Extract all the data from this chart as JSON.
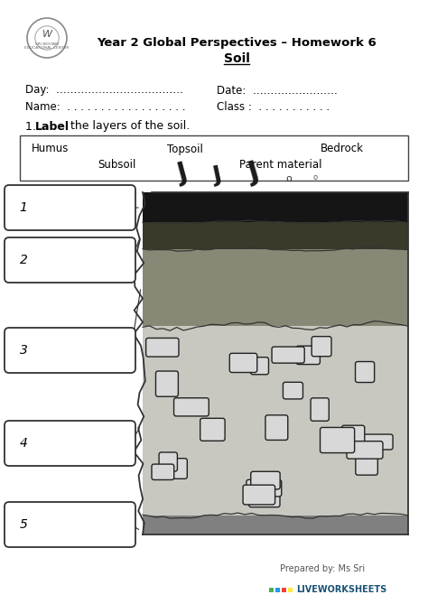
{
  "title_line1": "Year 2 Global Perspectives – Homework 6",
  "title_line2": "Soil",
  "day_label": "Day:  ………………………………",
  "date_label": "Date:  ……………………",
  "name_label": "Name:  . . . . . . . . . . . . . . . . . .",
  "class_label": "Class :  . . . . . . . . . . .",
  "instruction_num": "1.",
  "instruction_bold": "Label",
  "instruction_rest": " the layers of the soil.",
  "word_bank_row1_cols": [
    35,
    185,
    355
  ],
  "word_bank_row1": [
    "Humus",
    "Topsoil",
    "Bedrock"
  ],
  "word_bank_row2_cols": [
    108,
    265
  ],
  "word_bank_row2": [
    "Subsoil",
    "Parent material"
  ],
  "layer_numbers": [
    "1",
    "2",
    "3",
    "4",
    "5"
  ],
  "prepared_by": "Prepared by: Ms Sri",
  "liveworksheets": "LIVEWORKSHEETS",
  "bg_color": "#ffffff",
  "text_color": "#000000",
  "layer_colors": [
    "#151515",
    "#3a3a2a",
    "#888877",
    "#c8c8c0",
    "#808080"
  ],
  "rock_fill": "#d8d8d8",
  "rock_edge": "#222222",
  "sq_colors": [
    "#4CAF50",
    "#2196F3",
    "#F44336",
    "#FFEB3B"
  ]
}
